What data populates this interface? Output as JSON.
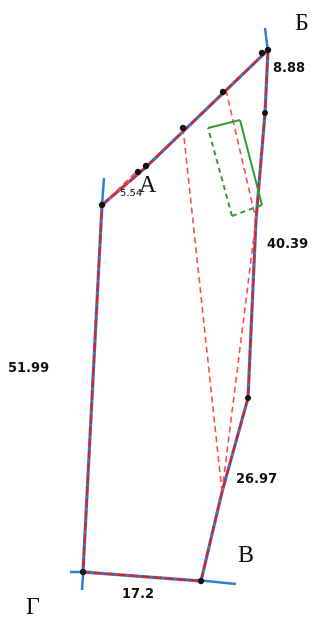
{
  "corners": {
    "a": "А",
    "b": "Б",
    "v": "В",
    "g": "Г"
  },
  "dimensions": {
    "top_right": "8.88",
    "right": "40.39",
    "left": "51.99",
    "lower_right": "26.97",
    "bottom": "17.2",
    "small_near_a": "5.54"
  },
  "colors": {
    "boundary": "#e02020",
    "axis": "#2d7fd6",
    "dashed": "#ff4a4a",
    "building": "#2f9e2f",
    "points": "#111111"
  }
}
